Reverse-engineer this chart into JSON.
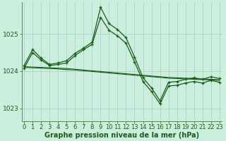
{
  "background_color": "#cceedd",
  "grid_color": "#aacccc",
  "line_color": "#1a5c1a",
  "xlabel": "Graphe pression niveau de la mer (hPa)",
  "xlabel_fontsize": 7,
  "tick_fontsize": 6,
  "yticks": [
    1023,
    1024,
    1025
  ],
  "xticks": [
    0,
    1,
    2,
    3,
    4,
    5,
    6,
    7,
    8,
    9,
    10,
    11,
    12,
    13,
    14,
    15,
    16,
    17,
    18,
    19,
    20,
    21,
    22,
    23
  ],
  "ylim": [
    1022.65,
    1025.85
  ],
  "xlim": [
    -0.3,
    23.3
  ],
  "series": {
    "s1": [
      1024.15,
      1024.58,
      1024.35,
      1024.18,
      1024.22,
      1024.28,
      1024.48,
      1024.62,
      1024.78,
      1025.72,
      1025.28,
      1025.12,
      1024.9,
      1024.38,
      1023.82,
      1023.55,
      1023.2,
      1023.7,
      1023.72,
      1023.78,
      1023.82,
      1023.78,
      1023.85,
      1023.8
    ],
    "s2": [
      1024.08,
      1024.5,
      1024.3,
      1024.15,
      1024.18,
      1024.22,
      1024.42,
      1024.58,
      1024.72,
      1025.45,
      1025.1,
      1024.95,
      1024.75,
      1024.25,
      1023.72,
      1023.45,
      1023.12,
      1023.6,
      1023.62,
      1023.68,
      1023.72,
      1023.68,
      1023.75,
      1023.7
    ],
    "s3_straight": [
      1024.12,
      1024.11,
      1024.1,
      1024.09,
      1024.08,
      1024.07,
      1024.05,
      1024.03,
      1024.01,
      1023.99,
      1023.97,
      1023.95,
      1023.93,
      1023.91,
      1023.89,
      1023.87,
      1023.85,
      1023.83,
      1023.82,
      1023.81,
      1023.8,
      1023.79,
      1023.78,
      1023.77
    ],
    "s4_straight": [
      1024.1,
      1024.09,
      1024.08,
      1024.07,
      1024.06,
      1024.04,
      1024.03,
      1024.01,
      1023.99,
      1023.97,
      1023.95,
      1023.93,
      1023.91,
      1023.89,
      1023.87,
      1023.85,
      1023.83,
      1023.81,
      1023.8,
      1023.79,
      1023.78,
      1023.77,
      1023.76,
      1023.75
    ]
  }
}
